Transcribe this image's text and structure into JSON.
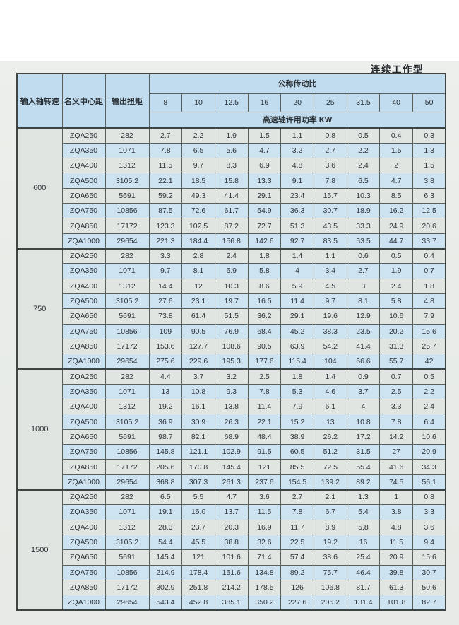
{
  "page": {
    "title": "连续工作型"
  },
  "colors": {
    "header_blue": "#c0dcee",
    "row_blue": "#cde3f2",
    "row_gray": "#e1e5e2",
    "group_gray": "#dce2df",
    "border": "#5a5f5c",
    "page_bg": "#e9ece8"
  },
  "table": {
    "col_headers": {
      "speed": "输入轴转速",
      "center_distance": "名义中心距",
      "torque": "输出扭矩"
    },
    "ratio_header": "公称传动比",
    "ratios": [
      "8",
      "10",
      "12.5",
      "16",
      "20",
      "25",
      "31.5",
      "40",
      "50"
    ],
    "power_header": "高速轴许用功率 KW",
    "groups": [
      {
        "speed": "600",
        "rows": [
          {
            "model": "ZQA250",
            "torque": "282",
            "values": [
              "2.7",
              "2.2",
              "1.9",
              "1.5",
              "1.1",
              "0.8",
              "0.5",
              "0.4",
              "0.3"
            ]
          },
          {
            "model": "ZQA350",
            "torque": "1071",
            "values": [
              "7.8",
              "6.5",
              "5.6",
              "4.7",
              "3.2",
              "2.7",
              "2.2",
              "1.5",
              "1.3"
            ]
          },
          {
            "model": "ZQA400",
            "torque": "1312",
            "values": [
              "11.5",
              "9.7",
              "8.3",
              "6.9",
              "4.8",
              "3.6",
              "2.4",
              "2",
              "1.5"
            ]
          },
          {
            "model": "ZQA500",
            "torque": "3105.2",
            "values": [
              "22.1",
              "18.5",
              "15.8",
              "13.3",
              "9.1",
              "7.8",
              "6.5",
              "4.7",
              "3.8"
            ]
          },
          {
            "model": "ZQA650",
            "torque": "5691",
            "values": [
              "59.2",
              "49.3",
              "41.4",
              "29.1",
              "23.4",
              "15.7",
              "10.3",
              "8.5",
              "6.3"
            ]
          },
          {
            "model": "ZQA750",
            "torque": "10856",
            "values": [
              "87.5",
              "72.6",
              "61.7",
              "54.9",
              "36.3",
              "30.7",
              "18.9",
              "16.2",
              "12.5"
            ]
          },
          {
            "model": "ZQA850",
            "torque": "17172",
            "values": [
              "123.3",
              "102.5",
              "87.2",
              "72.7",
              "51.3",
              "43.5",
              "33.3",
              "24.9",
              "20.6"
            ]
          },
          {
            "model": "ZQA1000",
            "torque": "29654",
            "values": [
              "221.3",
              "184.4",
              "156.8",
              "142.6",
              "92.7",
              "83.5",
              "53.5",
              "44.7",
              "33.7"
            ]
          }
        ]
      },
      {
        "speed": "750",
        "rows": [
          {
            "model": "ZQA250",
            "torque": "282",
            "values": [
              "3.3",
              "2.8",
              "2.4",
              "1.8",
              "1.4",
              "1.1",
              "0.6",
              "0.5",
              "0.4"
            ]
          },
          {
            "model": "ZQA350",
            "torque": "1071",
            "values": [
              "9.7",
              "8.1",
              "6.9",
              "5.8",
              "4",
              "3.4",
              "2.7",
              "1.9",
              "0.7"
            ]
          },
          {
            "model": "ZQA400",
            "torque": "1312",
            "values": [
              "14.4",
              "12",
              "10.3",
              "8.6",
              "5.9",
              "4.5",
              "3",
              "2.4",
              "1.8"
            ]
          },
          {
            "model": "ZQA500",
            "torque": "3105.2",
            "values": [
              "27.6",
              "23.1",
              "19.7",
              "16.5",
              "11.4",
              "9.7",
              "8.1",
              "5.8",
              "4.8"
            ]
          },
          {
            "model": "ZQA650",
            "torque": "5691",
            "values": [
              "73.8",
              "61.4",
              "51.5",
              "36.2",
              "29.1",
              "19.6",
              "12.9",
              "10.6",
              "7.9"
            ]
          },
          {
            "model": "ZQA750",
            "torque": "10856",
            "values": [
              "109",
              "90.5",
              "76.9",
              "68.4",
              "45.2",
              "38.3",
              "23.5",
              "20.2",
              "15.6"
            ]
          },
          {
            "model": "ZQA850",
            "torque": "17172",
            "values": [
              "153.6",
              "127.7",
              "108.6",
              "90.5",
              "63.9",
              "54.2",
              "41.4",
              "31.3",
              "25.7"
            ]
          },
          {
            "model": "ZQA1000",
            "torque": "29654",
            "values": [
              "275.6",
              "229.6",
              "195.3",
              "177.6",
              "115.4",
              "104",
              "66.6",
              "55.7",
              "42"
            ]
          }
        ]
      },
      {
        "speed": "1000",
        "rows": [
          {
            "model": "ZQA250",
            "torque": "282",
            "values": [
              "4.4",
              "3.7",
              "3.2",
              "2.5",
              "1.8",
              "1.4",
              "0.9",
              "0.7",
              "0.5"
            ]
          },
          {
            "model": "ZQA350",
            "torque": "1071",
            "values": [
              "13",
              "10.8",
              "9.3",
              "7.8",
              "5.3",
              "4.6",
              "3.7",
              "2.5",
              "2.2"
            ]
          },
          {
            "model": "ZQA400",
            "torque": "1312",
            "values": [
              "19.2",
              "16.1",
              "13.8",
              "11.4",
              "7.9",
              "6.1",
              "4",
              "3.3",
              "2.4"
            ]
          },
          {
            "model": "ZQA500",
            "torque": "3105.2",
            "values": [
              "36.9",
              "30.9",
              "26.3",
              "22.1",
              "15.2",
              "13",
              "10.8",
              "7.8",
              "6.4"
            ]
          },
          {
            "model": "ZQA650",
            "torque": "5691",
            "values": [
              "98.7",
              "82.1",
              "68.9",
              "48.4",
              "38.9",
              "26.2",
              "17.2",
              "14.2",
              "10.6"
            ]
          },
          {
            "model": "ZQA750",
            "torque": "10856",
            "values": [
              "145.8",
              "121.1",
              "102.9",
              "91.5",
              "60.5",
              "51.2",
              "31.5",
              "27",
              "20.9"
            ]
          },
          {
            "model": "ZQA850",
            "torque": "17172",
            "values": [
              "205.6",
              "170.8",
              "145.4",
              "121",
              "85.5",
              "72.5",
              "55.4",
              "41.6",
              "34.3"
            ]
          },
          {
            "model": "ZQA1000",
            "torque": "29654",
            "values": [
              "368.8",
              "307.3",
              "261.3",
              "237.6",
              "154.5",
              "139.2",
              "89.2",
              "74.5",
              "56.1"
            ]
          }
        ]
      },
      {
        "speed": "1500",
        "rows": [
          {
            "model": "ZQA250",
            "torque": "282",
            "values": [
              "6.5",
              "5.5",
              "4.7",
              "3.6",
              "2.7",
              "2.1",
              "1.3",
              "1",
              "0.8"
            ]
          },
          {
            "model": "ZQA350",
            "torque": "1071",
            "values": [
              "19.1",
              "16.0",
              "13.7",
              "11.5",
              "7.8",
              "6.7",
              "5.4",
              "3.8",
              "3.3"
            ]
          },
          {
            "model": "ZQA400",
            "torque": "1312",
            "values": [
              "28.3",
              "23.7",
              "20.3",
              "16.9",
              "11.7",
              "8.9",
              "5.8",
              "4.8",
              "3.6"
            ]
          },
          {
            "model": "ZQA500",
            "torque": "3105.2",
            "values": [
              "54.4",
              "45.5",
              "38.8",
              "32.6",
              "22.5",
              "19.2",
              "16",
              "11.5",
              "9.4"
            ]
          },
          {
            "model": "ZQA650",
            "torque": "5691",
            "values": [
              "145.4",
              "121",
              "101.6",
              "71.4",
              "57.4",
              "38.6",
              "25.4",
              "20.9",
              "15.6"
            ]
          },
          {
            "model": "ZQA750",
            "torque": "10856",
            "values": [
              "214.9",
              "178.4",
              "151.6",
              "134.8",
              "89.2",
              "75.7",
              "46.4",
              "39.8",
              "30.7"
            ]
          },
          {
            "model": "ZQA850",
            "torque": "17172",
            "values": [
              "302.9",
              "251.8",
              "214.2",
              "178.5",
              "126",
              "106.8",
              "81.7",
              "61.3",
              "50.6"
            ]
          },
          {
            "model": "ZQA1000",
            "torque": "29654",
            "values": [
              "543.4",
              "452.8",
              "385.1",
              "350.2",
              "227.6",
              "205.2",
              "131.4",
              "101.8",
              "82.7"
            ]
          }
        ]
      }
    ]
  }
}
